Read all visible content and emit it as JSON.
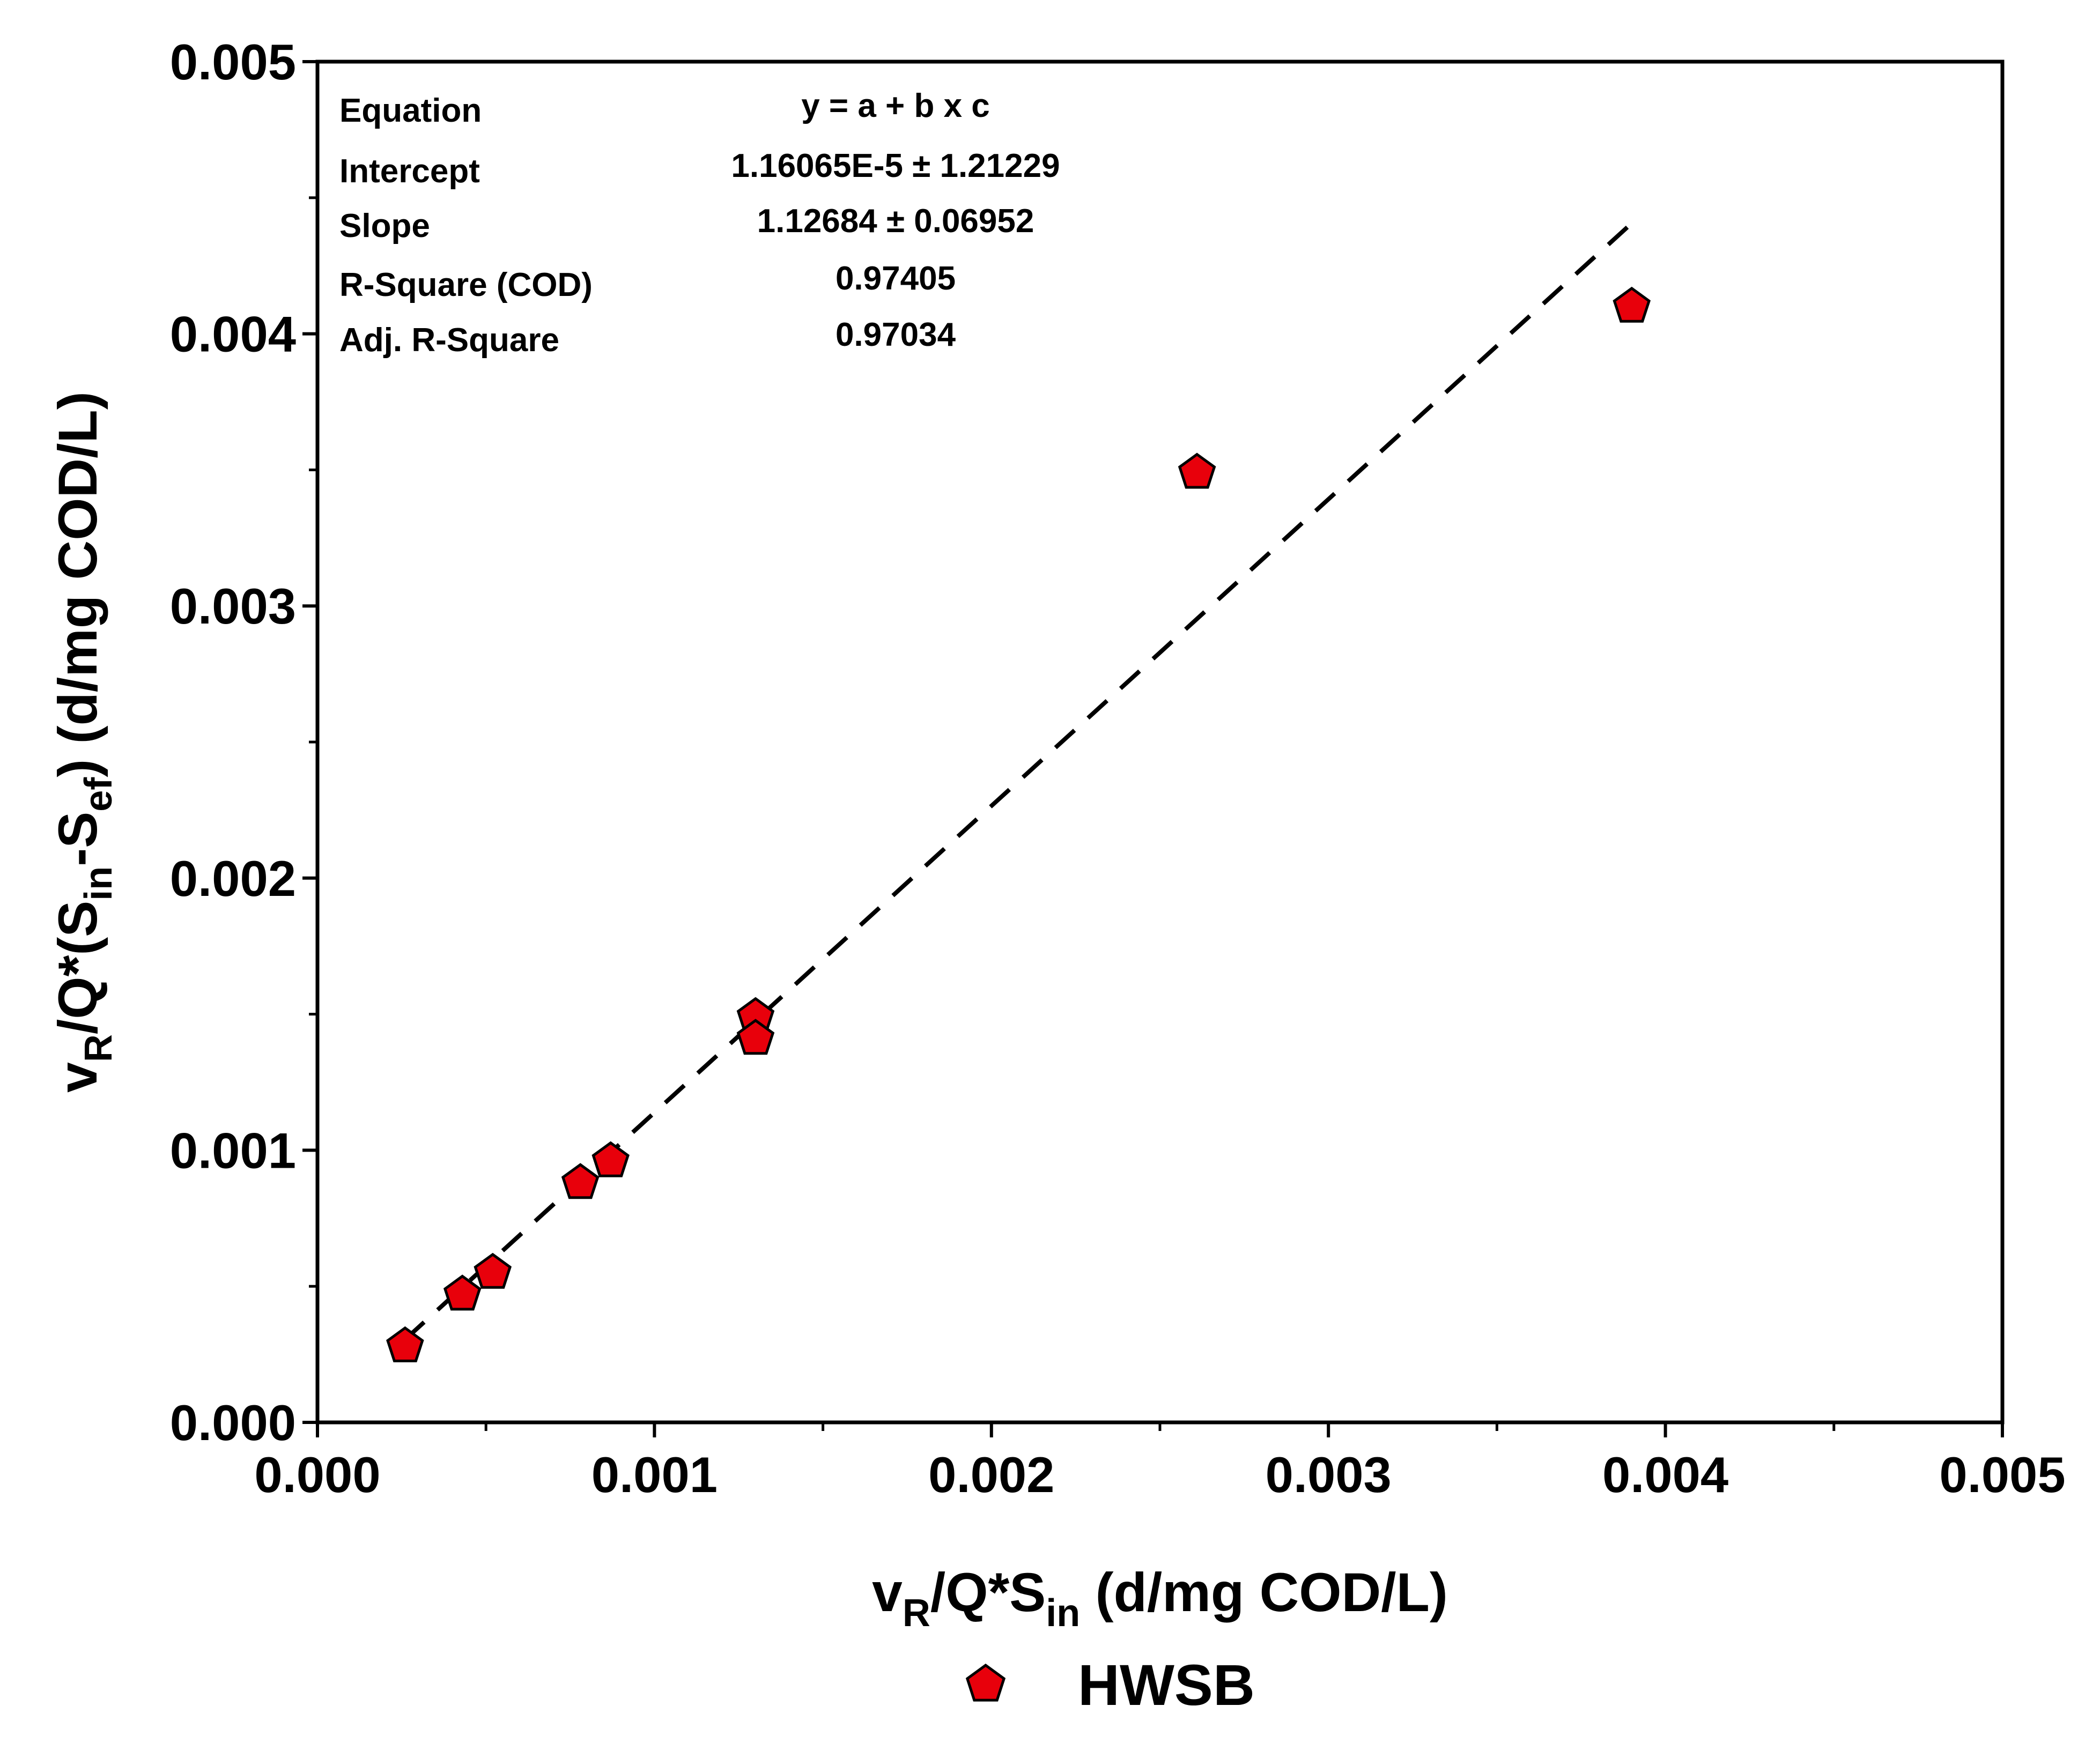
{
  "chart_data": {
    "type": "scatter",
    "title": "",
    "xlabel": {
      "base": "v",
      "sub1": "R",
      "mid": "/Q*S",
      "sub2": "in",
      "tail": " (d/mg COD/L)"
    },
    "ylabel": {
      "base": "v",
      "sub1": "R",
      "mid1": "/Q*(S",
      "sub2": "in",
      "mid2": "-S",
      "sub3": "ef",
      "tail": ") (d/mg COD/L)"
    },
    "xlim": [
      0,
      0.005
    ],
    "ylim": [
      0,
      0.005
    ],
    "x_ticks": [
      {
        "value": 0,
        "label": "0.000"
      },
      {
        "value": 0.001,
        "label": "0.001"
      },
      {
        "value": 0.002,
        "label": "0.002"
      },
      {
        "value": 0.003,
        "label": "0.003"
      },
      {
        "value": 0.004,
        "label": "0.004"
      },
      {
        "value": 0.005,
        "label": "0.005"
      }
    ],
    "y_ticks": [
      {
        "value": 0,
        "label": "0.000"
      },
      {
        "value": 0.001,
        "label": "0.001"
      },
      {
        "value": 0.002,
        "label": "0.002"
      },
      {
        "value": 0.003,
        "label": "0.003"
      },
      {
        "value": 0.004,
        "label": "0.004"
      },
      {
        "value": 0.005,
        "label": "0.005"
      }
    ],
    "minor_tick_step": 0.0005,
    "series": [
      {
        "name": "HWSB",
        "marker": "pentagon",
        "color": "#e8000b",
        "points": [
          {
            "x": 0.00026,
            "y": 0.00028
          },
          {
            "x": 0.00043,
            "y": 0.00047
          },
          {
            "x": 0.00052,
            "y": 0.00055
          },
          {
            "x": 0.00078,
            "y": 0.00088
          },
          {
            "x": 0.00087,
            "y": 0.00096
          },
          {
            "x": 0.0013,
            "y": 0.00149
          },
          {
            "x": 0.0013,
            "y": 0.00141
          },
          {
            "x": 0.00261,
            "y": 0.00349
          },
          {
            "x": 0.0039,
            "y": 0.0041
          }
        ]
      }
    ],
    "fit_line": {
      "style": "dashed",
      "color": "#000000",
      "intercept": 1.16065e-05,
      "slope": 1.12684,
      "x_range": [
        0.00026,
        0.00391
      ]
    },
    "stats_table": [
      {
        "label": "Equation",
        "value": "y = a + b x c"
      },
      {
        "label": "Intercept",
        "value": "1.16065E-5 ± 1.21229"
      },
      {
        "label": "Slope",
        "value": "1.12684 ± 0.06952"
      },
      {
        "label": "R-Square (COD)",
        "value": "0.97405"
      },
      {
        "label": "Adj. R-Square",
        "value": "0.97034"
      }
    ],
    "legend": {
      "position": "bottom-center",
      "label": "HWSB"
    }
  }
}
